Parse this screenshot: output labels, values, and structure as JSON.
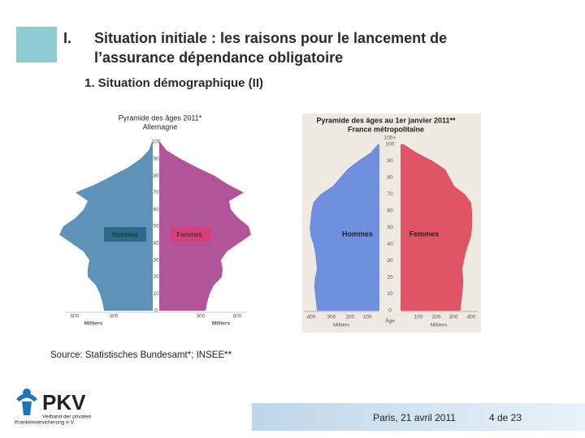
{
  "header": {
    "number": "I.",
    "title_lines": [
      "Situation initiale : les raisons pour le lancement de",
      "l’assurance dépendance obligatoire"
    ]
  },
  "subtitle": "1.  Situation démographique (II)",
  "figures": [
    {
      "title_lines": [
        "Pyramide des âges 2011*",
        "Allemagne"
      ],
      "age_ticks": [
        "0",
        "10",
        "20",
        "30",
        "40",
        "50",
        "60",
        "70",
        "80",
        "90",
        "100"
      ],
      "x_ticks_left": [
        "600",
        "300"
      ],
      "x_ticks_right": [
        "300",
        "600"
      ],
      "men": "Hommes",
      "women": "Femmes",
      "unit": "Milliers"
    },
    {
      "title_lines": [
        "Pyramide des âges au 1er janvier 2011**",
        "France métropolitaine"
      ],
      "age_ticks": [
        "0",
        "10",
        "20",
        "30",
        "40",
        "50",
        "60",
        "70",
        "80",
        "90",
        "100",
        "105+"
      ],
      "x_ticks_left": [
        "400",
        "300",
        "200",
        "100"
      ],
      "x_ticks_right": [
        "100",
        "200",
        "300",
        "400"
      ],
      "men": "Hommes",
      "women": "Femmes",
      "unit": "Milliers",
      "age_label": "Âge"
    }
  ],
  "source": "Source: Statistisches Bundesamt*; INSEE**",
  "logo": {
    "name": "PKV",
    "line1": "Verband der privaten",
    "line2": "Krankenversicherung e.V."
  },
  "footer": {
    "place_date": "Paris, 21 avril 2011",
    "page": "4 de 23"
  }
}
